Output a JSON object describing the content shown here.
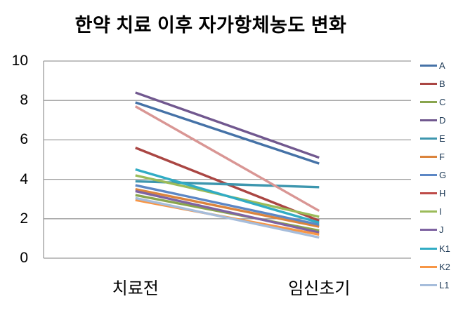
{
  "chart_data": {
    "type": "line",
    "title": "한약 치료 이후 자가항체농도 변화",
    "xlabel": "",
    "ylabel": "",
    "categories": [
      "치료전",
      "임신초기"
    ],
    "ylim": [
      0,
      10
    ],
    "yticks": [
      0,
      2,
      4,
      6,
      8,
      10
    ],
    "grid": true,
    "legend_position": "right",
    "series": [
      {
        "name": "A",
        "color": "#4572A7",
        "line_color": "#4572A7",
        "values": [
          7.9,
          4.8
        ]
      },
      {
        "name": "B",
        "color": "#AA4643",
        "line_color": "#AA4643",
        "values": [
          5.6,
          1.9
        ]
      },
      {
        "name": "C",
        "color": "#89A54E",
        "line_color": "#89A54E",
        "values": [
          3.2,
          1.4
        ]
      },
      {
        "name": "D",
        "color": "#71588F",
        "line_color": "#71588F",
        "values": [
          8.4,
          5.1
        ]
      },
      {
        "name": "E",
        "color": "#3D96AE",
        "line_color": "#3D96AE",
        "values": [
          3.9,
          3.6
        ]
      },
      {
        "name": "F",
        "color": "#DB843D",
        "line_color": "#DB843D",
        "values": [
          3.5,
          1.6
        ]
      },
      {
        "name": "G",
        "color": "#5C87C5",
        "line_color": "#5C87C5",
        "values": [
          3.7,
          1.7
        ]
      },
      {
        "name": "H",
        "color": "#BE4B48",
        "line_color": "#D99694",
        "values": [
          7.7,
          2.4
        ]
      },
      {
        "name": "I",
        "color": "#9BBB59",
        "line_color": "#9BBB59",
        "values": [
          4.2,
          2.1
        ]
      },
      {
        "name": "J",
        "color": "#7E63A1",
        "line_color": "#7E63A1",
        "values": [
          3.4,
          1.3
        ]
      },
      {
        "name": "K1",
        "color": "#31ACC4",
        "line_color": "#31ACC4",
        "values": [
          4.5,
          1.8
        ]
      },
      {
        "name": "K2",
        "color": "#F79646",
        "line_color": "#F79646",
        "values": [
          2.95,
          1.2
        ]
      },
      {
        "name": "L1",
        "color": "#A6BDDB",
        "line_color": "#A6BDDB",
        "values": [
          3.05,
          1.05
        ]
      }
    ]
  },
  "colors": {
    "gridline": "#9B9B9B",
    "axis_line": "#9B9B9B",
    "axis_text": "#000000",
    "legend_text": "#1F3B57",
    "background": "#FFFFFF"
  }
}
